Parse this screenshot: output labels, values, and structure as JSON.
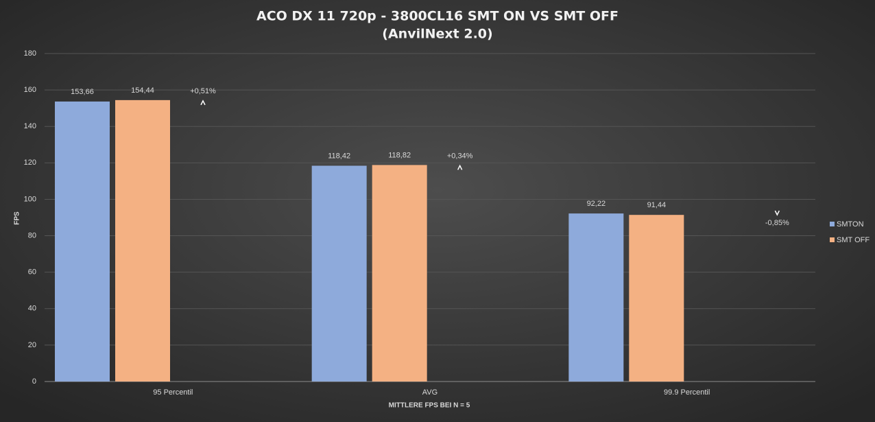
{
  "chart_data": {
    "type": "bar",
    "title": "ACO DX 11 720p - 3800CL16 SMT ON VS SMT OFF",
    "subtitle": "(AnvilNext 2.0)",
    "x_label": "MITTLERE FPS BEI N = 5",
    "y_label": "FPS",
    "categories": [
      "95 Percentil",
      "AVG",
      "99.9 Percentil"
    ],
    "series": [
      {
        "name": "SMTON",
        "color": "#8eaadb",
        "values": [
          153.66,
          118.42,
          92.22
        ],
        "value_labels": [
          "153,66",
          "118,42",
          "92,22"
        ]
      },
      {
        "name": "SMT OFF",
        "color": "#f4b183",
        "values": [
          154.44,
          118.82,
          91.44
        ],
        "value_labels": [
          "154,44",
          "118,82",
          "91,44"
        ]
      }
    ],
    "annotations": [
      {
        "text": "+0,51%",
        "direction": "up"
      },
      {
        "text": "+0,34%",
        "direction": "up"
      },
      {
        "text": "-0,85%",
        "direction": "down"
      }
    ],
    "ylim": [
      0,
      180
    ],
    "yticks": [
      0,
      20,
      40,
      60,
      80,
      100,
      120,
      140,
      160,
      180
    ],
    "grid": true,
    "legend": "right"
  }
}
